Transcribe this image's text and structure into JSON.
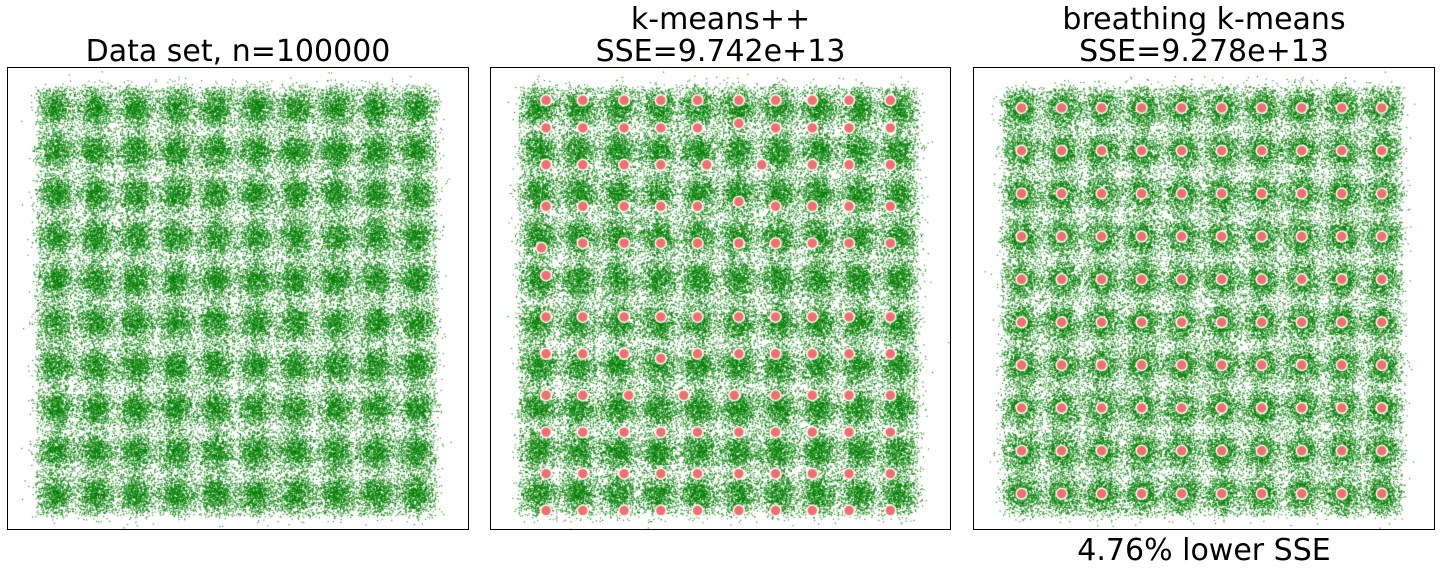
{
  "chart_data": [
    {
      "type": "scatter",
      "title": "Data set, n=100000",
      "series": [
        {
          "role": "data",
          "color": "#008000",
          "n": 100000
        }
      ],
      "grid": {
        "rows": 10,
        "cols": 10
      },
      "xlim": [
        0,
        1
      ],
      "ylim": [
        0,
        1
      ],
      "axes_ticks": false
    },
    {
      "type": "scatter",
      "title_line1": "k-means++",
      "title_line2": "SSE=9.742e+13",
      "series": [
        {
          "role": "data",
          "color": "#008000",
          "n": 100000
        },
        {
          "role": "centroids",
          "color": "#f07070",
          "edge": "#ffffff",
          "points": [
            [
              0.12,
              0.07
            ],
            [
              0.2,
              0.07
            ],
            [
              0.29,
              0.07
            ],
            [
              0.37,
              0.07
            ],
            [
              0.45,
              0.07
            ],
            [
              0.54,
              0.07
            ],
            [
              0.62,
              0.07
            ],
            [
              0.7,
              0.07
            ],
            [
              0.78,
              0.07
            ],
            [
              0.87,
              0.07
            ],
            [
              0.12,
              0.13
            ],
            [
              0.2,
              0.13
            ],
            [
              0.29,
              0.13
            ],
            [
              0.37,
              0.13
            ],
            [
              0.45,
              0.13
            ],
            [
              0.54,
              0.12
            ],
            [
              0.62,
              0.13
            ],
            [
              0.7,
              0.13
            ],
            [
              0.78,
              0.13
            ],
            [
              0.87,
              0.13
            ],
            [
              0.12,
              0.21
            ],
            [
              0.2,
              0.21
            ],
            [
              0.29,
              0.21
            ],
            [
              0.37,
              0.21
            ],
            [
              0.47,
              0.21
            ],
            [
              0.59,
              0.21
            ],
            [
              0.7,
              0.21
            ],
            [
              0.78,
              0.21
            ],
            [
              0.87,
              0.21
            ],
            [
              0.12,
              0.3
            ],
            [
              0.2,
              0.3
            ],
            [
              0.29,
              0.3
            ],
            [
              0.37,
              0.3
            ],
            [
              0.45,
              0.3
            ],
            [
              0.54,
              0.29
            ],
            [
              0.62,
              0.3
            ],
            [
              0.7,
              0.3
            ],
            [
              0.78,
              0.3
            ],
            [
              0.87,
              0.3
            ],
            [
              0.11,
              0.39
            ],
            [
              0.12,
              0.45
            ],
            [
              0.2,
              0.38
            ],
            [
              0.29,
              0.38
            ],
            [
              0.37,
              0.38
            ],
            [
              0.45,
              0.38
            ],
            [
              0.54,
              0.38
            ],
            [
              0.62,
              0.38
            ],
            [
              0.7,
              0.38
            ],
            [
              0.78,
              0.38
            ],
            [
              0.87,
              0.38
            ],
            [
              0.12,
              0.54
            ],
            [
              0.2,
              0.54
            ],
            [
              0.29,
              0.54
            ],
            [
              0.37,
              0.54
            ],
            [
              0.45,
              0.54
            ],
            [
              0.54,
              0.54
            ],
            [
              0.62,
              0.54
            ],
            [
              0.7,
              0.54
            ],
            [
              0.78,
              0.54
            ],
            [
              0.87,
              0.54
            ],
            [
              0.12,
              0.62
            ],
            [
              0.2,
              0.62
            ],
            [
              0.29,
              0.62
            ],
            [
              0.37,
              0.63
            ],
            [
              0.45,
              0.62
            ],
            [
              0.54,
              0.62
            ],
            [
              0.62,
              0.62
            ],
            [
              0.7,
              0.62
            ],
            [
              0.78,
              0.62
            ],
            [
              0.87,
              0.62
            ],
            [
              0.12,
              0.71
            ],
            [
              0.2,
              0.71
            ],
            [
              0.3,
              0.71
            ],
            [
              0.42,
              0.71
            ],
            [
              0.53,
              0.71
            ],
            [
              0.62,
              0.71
            ],
            [
              0.7,
              0.71
            ],
            [
              0.78,
              0.71
            ],
            [
              0.87,
              0.71
            ],
            [
              0.12,
              0.79
            ],
            [
              0.2,
              0.79
            ],
            [
              0.29,
              0.79
            ],
            [
              0.37,
              0.79
            ],
            [
              0.45,
              0.79
            ],
            [
              0.54,
              0.79
            ],
            [
              0.62,
              0.79
            ],
            [
              0.7,
              0.79
            ],
            [
              0.78,
              0.79
            ],
            [
              0.87,
              0.79
            ],
            [
              0.12,
              0.88
            ],
            [
              0.2,
              0.88
            ],
            [
              0.29,
              0.88
            ],
            [
              0.37,
              0.88
            ],
            [
              0.45,
              0.88
            ],
            [
              0.54,
              0.88
            ],
            [
              0.62,
              0.88
            ],
            [
              0.7,
              0.88
            ],
            [
              0.78,
              0.88
            ],
            [
              0.87,
              0.88
            ],
            [
              0.12,
              0.96
            ],
            [
              0.2,
              0.96
            ],
            [
              0.29,
              0.96
            ],
            [
              0.37,
              0.96
            ],
            [
              0.45,
              0.96
            ],
            [
              0.54,
              0.96
            ],
            [
              0.62,
              0.96
            ],
            [
              0.7,
              0.96
            ],
            [
              0.78,
              0.96
            ],
            [
              0.87,
              0.96
            ]
          ]
        }
      ],
      "xlim": [
        0,
        1
      ],
      "ylim": [
        0,
        1
      ],
      "axes_ticks": false
    },
    {
      "type": "scatter",
      "title_line1": "breathing k-means",
      "title_line2": "SSE=9.278e+13",
      "caption": "4.76% lower SSE",
      "series": [
        {
          "role": "data",
          "color": "#008000",
          "n": 100000
        },
        {
          "role": "centroids",
          "color": "#f07070",
          "edge": "#ffffff",
          "grid": {
            "rows": 10,
            "cols": 10
          }
        }
      ],
      "xlim": [
        0,
        1
      ],
      "ylim": [
        0,
        1
      ],
      "axes_ticks": false
    }
  ]
}
